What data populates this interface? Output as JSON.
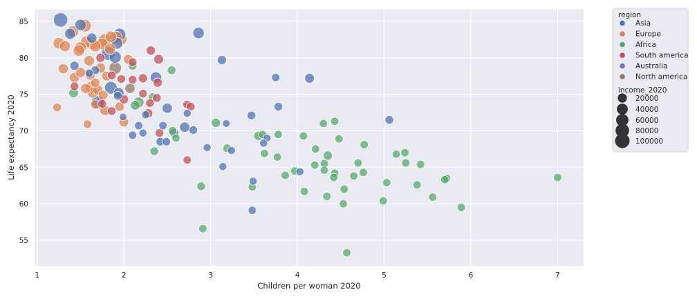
{
  "chart_data": {
    "type": "scatter",
    "xlabel": "Children per woman 2020",
    "ylabel": "Life expectancy 2020",
    "xlim": [
      0.97,
      7.3
    ],
    "ylim": [
      51.5,
      86.6
    ],
    "xticks": [
      1,
      2,
      3,
      4,
      5,
      6,
      7
    ],
    "yticks": [
      55,
      60,
      65,
      70,
      75,
      80,
      85
    ],
    "grid": true,
    "legend_position": "outside-right",
    "hue_title": "region",
    "size_title": "income_2020",
    "size_entries": [
      20000,
      40000,
      60000,
      80000,
      100000
    ],
    "colors": {
      "Asia": "#4c72b0",
      "Europe": "#dd8452",
      "Africa": "#55a868",
      "South america": "#c44e52",
      "Australia": "#8172b3",
      "North america": "#937860",
      "background": "#eaeaf2",
      "grid": "#ffffff"
    },
    "series": [
      {
        "name": "Asia",
        "points": [
          [
            1.27,
            85.2,
            95000
          ],
          [
            1.5,
            84.5,
            45000
          ],
          [
            1.38,
            83.3,
            40000
          ],
          [
            1.63,
            82.7,
            30000
          ],
          [
            1.95,
            83.2,
            60000
          ],
          [
            2.86,
            83.4,
            45000
          ],
          [
            1.92,
            82.0,
            50000
          ],
          [
            1.82,
            80.6,
            85000
          ],
          [
            1.9,
            80.1,
            55000
          ],
          [
            1.43,
            78.9,
            20000
          ],
          [
            1.67,
            78.3,
            15000
          ],
          [
            1.6,
            77.9,
            12000
          ],
          [
            3.13,
            79.7,
            20000
          ],
          [
            4.14,
            77.2,
            25000
          ],
          [
            3.75,
            77.3,
            12000
          ],
          [
            2.37,
            77.3,
            45000
          ],
          [
            1.85,
            75.9,
            65000
          ],
          [
            1.94,
            75.2,
            35000
          ],
          [
            1.93,
            74.8,
            15000
          ],
          [
            1.7,
            73.9,
            70000
          ],
          [
            3.78,
            73.3,
            15000
          ],
          [
            2.5,
            73.1,
            30000
          ],
          [
            2.73,
            72.4,
            10000
          ],
          [
            2.25,
            72.2,
            10000
          ],
          [
            3.47,
            72.1,
            15000
          ],
          [
            1.99,
            71.9,
            8000
          ],
          [
            5.06,
            71.5,
            15000
          ],
          [
            3.18,
            71.0,
            8000
          ],
          [
            2.17,
            70.7,
            12000
          ],
          [
            2.45,
            70.7,
            12000
          ],
          [
            2.7,
            70.5,
            30000
          ],
          [
            2.8,
            70.1,
            15000
          ],
          [
            2.58,
            69.7,
            20000
          ],
          [
            2.1,
            69.4,
            12000
          ],
          [
            2.22,
            69.7,
            10000
          ],
          [
            3.65,
            69.0,
            10000
          ],
          [
            2.42,
            68.5,
            15000
          ],
          [
            2.49,
            68.5,
            12000
          ],
          [
            3.61,
            68.3,
            10000
          ],
          [
            2.96,
            67.7,
            10000
          ],
          [
            3.24,
            67.3,
            10000
          ],
          [
            3.14,
            65.1,
            10000
          ],
          [
            4.03,
            64.4,
            10000
          ],
          [
            3.49,
            63.1,
            10000
          ],
          [
            3.48,
            59.1,
            12000
          ]
        ]
      },
      {
        "name": "Europe",
        "points": [
          [
            1.25,
            82.0,
            45000
          ],
          [
            1.32,
            81.6,
            40000
          ],
          [
            1.41,
            83.6,
            50000
          ],
          [
            1.55,
            84.4,
            65000
          ],
          [
            1.5,
            81.4,
            50000
          ],
          [
            1.57,
            82.2,
            55000
          ],
          [
            1.63,
            82.0,
            60000
          ],
          [
            1.67,
            81.6,
            45000
          ],
          [
            1.75,
            81.9,
            50000
          ],
          [
            1.78,
            82.4,
            70000
          ],
          [
            1.85,
            82.9,
            45000
          ],
          [
            1.91,
            82.8,
            55000
          ],
          [
            1.96,
            82.6,
            75000
          ],
          [
            1.84,
            81.2,
            40000
          ],
          [
            1.3,
            78.5,
            30000
          ],
          [
            1.48,
            81.0,
            45000
          ],
          [
            1.6,
            79.6,
            35000
          ],
          [
            1.43,
            77.3,
            30000
          ],
          [
            1.5,
            78.0,
            30000
          ],
          [
            1.61,
            77.6,
            25000
          ],
          [
            1.67,
            76.6,
            20000
          ],
          [
            1.73,
            78.6,
            30000
          ],
          [
            1.8,
            77.5,
            25000
          ],
          [
            1.56,
            75.8,
            30000
          ],
          [
            1.64,
            75.2,
            35000
          ],
          [
            1.7,
            75.6,
            30000
          ],
          [
            1.76,
            74.9,
            25000
          ],
          [
            1.62,
            76.0,
            40000
          ],
          [
            1.78,
            72.8,
            30000
          ],
          [
            1.95,
            73.3,
            20000
          ],
          [
            2.0,
            71.2,
            25000
          ],
          [
            1.23,
            73.2,
            15000
          ],
          [
            1.58,
            70.9,
            15000
          ],
          [
            2.05,
            79.8,
            25000
          ],
          [
            1.67,
            73.6,
            20000
          ]
        ]
      },
      {
        "name": "Africa",
        "points": [
          [
            2.1,
            78.9,
            15000
          ],
          [
            2.55,
            78.3,
            15000
          ],
          [
            1.42,
            75.2,
            25000
          ],
          [
            2.17,
            73.9,
            35000
          ],
          [
            2.13,
            73.5,
            25000
          ],
          [
            2.33,
            74.6,
            15000
          ],
          [
            3.06,
            71.1,
            20000
          ],
          [
            4.3,
            71.0,
            12000
          ],
          [
            4.43,
            71.3,
            12000
          ],
          [
            2.56,
            70.0,
            15000
          ],
          [
            2.6,
            69.0,
            12000
          ],
          [
            3.55,
            69.3,
            20000
          ],
          [
            3.6,
            69.5,
            12000
          ],
          [
            3.78,
            69.5,
            12000
          ],
          [
            4.07,
            69.3,
            12000
          ],
          [
            4.48,
            68.9,
            12000
          ],
          [
            4.77,
            68.1,
            12000
          ],
          [
            3.19,
            67.6,
            15000
          ],
          [
            3.62,
            66.9,
            12000
          ],
          [
            4.21,
            67.5,
            12000
          ],
          [
            4.35,
            66.6,
            20000
          ],
          [
            3.77,
            66.4,
            12000
          ],
          [
            5.14,
            66.8,
            12000
          ],
          [
            5.24,
            67.0,
            12000
          ],
          [
            2.35,
            67.2,
            15000
          ],
          [
            4.31,
            65.5,
            12000
          ],
          [
            4.7,
            65.6,
            12000
          ],
          [
            5.25,
            65.6,
            12000
          ],
          [
            5.42,
            65.4,
            12000
          ],
          [
            4.2,
            65.3,
            12000
          ],
          [
            3.97,
            64.5,
            12000
          ],
          [
            4.31,
            64.6,
            12000
          ],
          [
            4.43,
            64.2,
            12000
          ],
          [
            4.76,
            64.3,
            12000
          ],
          [
            4.65,
            63.8,
            12000
          ],
          [
            4.42,
            63.6,
            12000
          ],
          [
            3.86,
            63.9,
            12000
          ],
          [
            5.72,
            63.5,
            12000
          ],
          [
            5.7,
            63.3,
            12000
          ],
          [
            7.0,
            63.6,
            12000
          ],
          [
            5.03,
            62.9,
            12000
          ],
          [
            5.38,
            62.6,
            12000
          ],
          [
            2.89,
            62.4,
            15000
          ],
          [
            3.48,
            62.3,
            12000
          ],
          [
            4.08,
            61.7,
            12000
          ],
          [
            4.54,
            62.0,
            12000
          ],
          [
            4.34,
            61.0,
            12000
          ],
          [
            5.56,
            60.9,
            12000
          ],
          [
            4.99,
            60.4,
            12000
          ],
          [
            4.53,
            60.0,
            12000
          ],
          [
            5.89,
            59.5,
            12000
          ],
          [
            2.91,
            56.6,
            12000
          ],
          [
            4.57,
            53.3,
            12000
          ]
        ]
      },
      {
        "name": "South america",
        "points": [
          [
            2.31,
            81.0,
            20000
          ],
          [
            2.4,
            79.8,
            25000
          ],
          [
            2.1,
            79.4,
            15000
          ],
          [
            1.73,
            80.0,
            20000
          ],
          [
            2.22,
            77.2,
            20000
          ],
          [
            2.39,
            76.6,
            20000
          ],
          [
            1.86,
            77.6,
            15000
          ],
          [
            1.97,
            77.1,
            15000
          ],
          [
            2.1,
            77.0,
            15000
          ],
          [
            1.43,
            76.1,
            15000
          ],
          [
            2.22,
            75.1,
            15000
          ],
          [
            2.38,
            74.5,
            15000
          ],
          [
            2.0,
            74.3,
            20000
          ],
          [
            1.75,
            73.7,
            15000
          ],
          [
            1.86,
            72.7,
            15000
          ],
          [
            2.28,
            72.4,
            20000
          ],
          [
            2.3,
            73.8,
            15000
          ],
          [
            2.73,
            73.6,
            15000
          ],
          [
            2.77,
            73.3,
            15000
          ],
          [
            2.41,
            69.7,
            15000
          ],
          [
            2.73,
            66.0,
            12000
          ]
        ]
      },
      {
        "name": "North america",
        "points": [
          [
            2.07,
            75.8,
            30000
          ],
          [
            1.9,
            78.6,
            60000
          ]
        ]
      }
    ]
  }
}
